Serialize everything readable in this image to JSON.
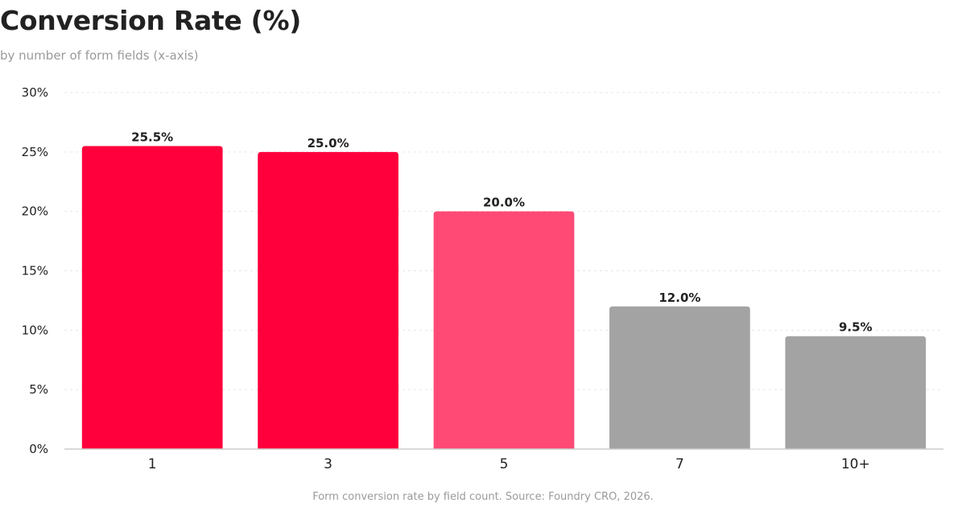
{
  "chart_data": {
    "type": "bar",
    "title": "Conversion Rate (%)",
    "subtitle": "by number of form fields (x-axis)",
    "caption": "Form conversion rate by field count. Source: Foundry CRO, 2026.",
    "xlabel": "",
    "ylabel": "",
    "categories": [
      "1",
      "3",
      "5",
      "7",
      "10+"
    ],
    "values": [
      25.5,
      25.0,
      20.0,
      12.0,
      9.5
    ],
    "data_labels": [
      "25.5%",
      "25.0%",
      "20.0%",
      "12.0%",
      "9.5%"
    ],
    "bar_colors": [
      "#ff003c",
      "#ff003c",
      "#ff4a75",
      "#a3a3a3",
      "#a3a3a3"
    ],
    "ylim": [
      0,
      30
    ],
    "yticks": [
      0,
      5,
      10,
      15,
      20,
      25,
      30
    ],
    "ytick_labels": [
      "0%",
      "5%",
      "10%",
      "15%",
      "20%",
      "25%",
      "30%"
    ],
    "grid": true,
    "legend": "none"
  }
}
